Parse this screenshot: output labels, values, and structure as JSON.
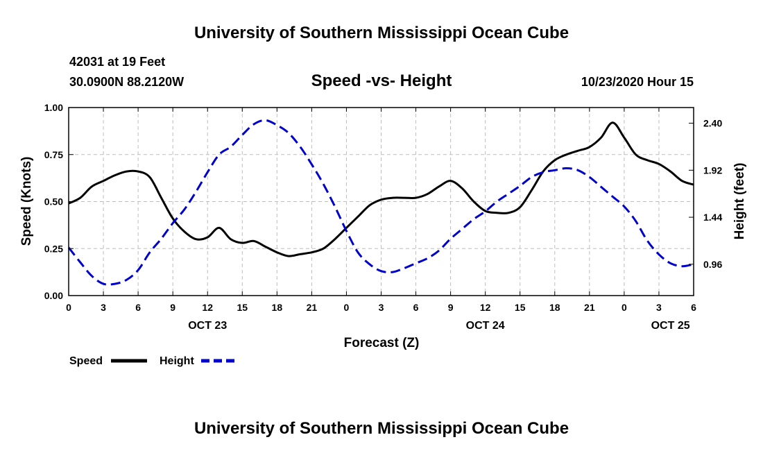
{
  "page": {
    "top_title": "University of Southern Mississippi Ocean Cube",
    "bottom_title": "University of Southern Mississippi Ocean Cube",
    "station_line": "42031 at 19 Feet",
    "coord_line": "30.0900N 88.2120W",
    "date_line": "10/23/2020 Hour 15"
  },
  "chart_data": {
    "type": "line",
    "title": "Speed -vs- Height",
    "xlabel": "Forecast (Z)",
    "ylabel": "Speed (Knots)",
    "y2label": "Height (feet)",
    "x_ticks": [
      "0",
      "3",
      "6",
      "9",
      "12",
      "15",
      "18",
      "21",
      "0",
      "3",
      "6",
      "9",
      "12",
      "15",
      "18",
      "21",
      "0",
      "3",
      "6"
    ],
    "x_range": [
      0,
      54
    ],
    "date_labels": [
      {
        "label": "OCT 23",
        "hour": 12
      },
      {
        "label": "OCT 24",
        "hour": 36
      },
      {
        "label": "OCT 25",
        "hour": 52
      }
    ],
    "y_ticks": [
      "0.00",
      "0.25",
      "0.50",
      "0.75",
      "1.00"
    ],
    "ylim": [
      0,
      1
    ],
    "y2_ticks": [
      "0.96",
      "1.44",
      "1.92",
      "2.40"
    ],
    "y2lim": [
      0.64,
      2.56
    ],
    "grid": true,
    "legend": {
      "position": "bottom-left"
    },
    "series": [
      {
        "name": "Speed",
        "axis": "left",
        "color": "#000000",
        "style": "solid",
        "x": [
          0,
          1,
          2,
          3,
          4,
          5,
          6,
          7,
          8,
          9,
          10,
          11,
          12,
          13,
          14,
          15,
          16,
          17,
          18,
          19,
          20,
          21,
          22,
          23,
          24,
          25,
          26,
          27,
          28,
          29,
          30,
          31,
          32,
          33,
          34,
          35,
          36,
          37,
          38,
          39,
          40,
          41,
          42,
          43,
          44,
          45,
          46,
          47,
          48,
          49,
          50,
          51,
          52,
          53,
          54
        ],
        "values": [
          0.49,
          0.52,
          0.58,
          0.61,
          0.64,
          0.66,
          0.66,
          0.63,
          0.52,
          0.41,
          0.34,
          0.3,
          0.31,
          0.36,
          0.3,
          0.28,
          0.29,
          0.26,
          0.23,
          0.21,
          0.22,
          0.23,
          0.25,
          0.3,
          0.36,
          0.42,
          0.48,
          0.51,
          0.52,
          0.52,
          0.52,
          0.54,
          0.58,
          0.61,
          0.57,
          0.5,
          0.45,
          0.44,
          0.44,
          0.47,
          0.56,
          0.66,
          0.72,
          0.75,
          0.77,
          0.79,
          0.84,
          0.92,
          0.84,
          0.75,
          0.72,
          0.7,
          0.66,
          0.61,
          0.59
        ]
      },
      {
        "name": "Height",
        "axis": "right",
        "color": "#0000cc",
        "style": "dashed",
        "x": [
          0,
          1,
          2,
          3,
          4,
          5,
          6,
          7,
          8,
          9,
          10,
          11,
          12,
          13,
          14,
          15,
          16,
          17,
          18,
          19,
          20,
          21,
          22,
          23,
          24,
          25,
          26,
          27,
          28,
          29,
          30,
          31,
          32,
          33,
          34,
          35,
          36,
          37,
          38,
          39,
          40,
          41,
          42,
          43,
          44,
          45,
          46,
          47,
          48,
          49,
          50,
          51,
          52,
          53,
          54
        ],
        "values": [
          1.13,
          0.98,
          0.84,
          0.76,
          0.76,
          0.8,
          0.9,
          1.08,
          1.22,
          1.38,
          1.52,
          1.7,
          1.9,
          2.08,
          2.16,
          2.28,
          2.39,
          2.43,
          2.38,
          2.3,
          2.16,
          1.98,
          1.78,
          1.55,
          1.3,
          1.08,
          0.96,
          0.89,
          0.88,
          0.92,
          0.97,
          1.02,
          1.1,
          1.22,
          1.32,
          1.42,
          1.5,
          1.6,
          1.68,
          1.76,
          1.85,
          1.9,
          1.92,
          1.94,
          1.92,
          1.85,
          1.75,
          1.65,
          1.55,
          1.4,
          1.2,
          1.06,
          0.97,
          0.94,
          0.96
        ]
      }
    ]
  }
}
